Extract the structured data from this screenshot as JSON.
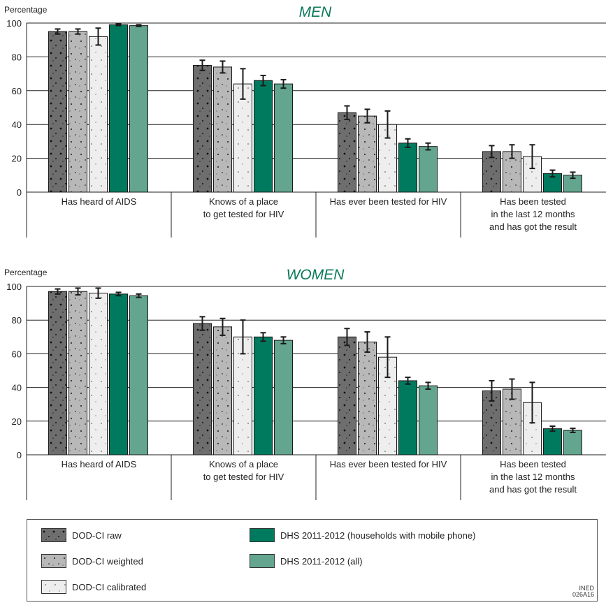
{
  "colors": {
    "raw": "#6e6e6e",
    "weighted": "#b8b8b8",
    "calibrated": "#eeeeee",
    "dhs_mobile": "#007a5e",
    "dhs_all": "#63a58f",
    "title": "#0b7a5a"
  },
  "chart_data": [
    {
      "type": "bar",
      "title": "MEN",
      "ylabel": "Percentage",
      "ylim": [
        0,
        100
      ],
      "yticks": [
        0,
        20,
        40,
        60,
        80,
        100
      ],
      "grid": true,
      "categories": [
        "Has heard of AIDS",
        "Knows of a place\nto get tested for HIV",
        "Has ever been tested for HIV",
        "Has been tested\nin the last 12 months\nand has got the result"
      ],
      "series": [
        {
          "name": "DOD-CI raw",
          "values": [
            95,
            75,
            47,
            24
          ],
          "err": [
            1.5,
            3,
            4,
            3.5
          ]
        },
        {
          "name": "DOD-CI weighted",
          "values": [
            95,
            74,
            45,
            24
          ],
          "err": [
            1.5,
            3.5,
            4,
            4
          ]
        },
        {
          "name": "DOD-CI calibrated",
          "values": [
            92,
            64,
            40,
            21
          ],
          "err": [
            5,
            9,
            8,
            7
          ]
        },
        {
          "name": "DHS 2011-2012 (households with mobile phone)",
          "values": [
            99,
            66,
            29,
            11
          ],
          "err": [
            0.5,
            3,
            2.5,
            2
          ]
        },
        {
          "name": "DHS 2011-2012 (all)",
          "values": [
            98.5,
            64,
            27,
            10
          ],
          "err": [
            0.5,
            2.5,
            2,
            1.8
          ]
        }
      ]
    },
    {
      "type": "bar",
      "title": "WOMEN",
      "ylabel": "Percentage",
      "ylim": [
        0,
        100
      ],
      "yticks": [
        0,
        20,
        40,
        60,
        80,
        100
      ],
      "grid": true,
      "categories": [
        "Has heard of AIDS",
        "Knows of a place\nto get tested for HIV",
        "Has ever been tested for HIV",
        "Has been tested\nin the last 12 months\nand has got the result"
      ],
      "series": [
        {
          "name": "DOD-CI raw",
          "values": [
            97,
            78,
            70,
            38
          ],
          "err": [
            1.5,
            4,
            5,
            6
          ]
        },
        {
          "name": "DOD-CI weighted",
          "values": [
            97,
            76,
            67,
            39
          ],
          "err": [
            2,
            5,
            6,
            6
          ]
        },
        {
          "name": "DOD-CI calibrated",
          "values": [
            96,
            70,
            58,
            31
          ],
          "err": [
            3,
            10,
            12,
            12
          ]
        },
        {
          "name": "DHS 2011-2012 (households with mobile phone)",
          "values": [
            95.5,
            70,
            44,
            15.5
          ],
          "err": [
            1,
            2.5,
            2,
            1.5
          ]
        },
        {
          "name": "DHS 2011-2012 (all)",
          "values": [
            94.5,
            68,
            41,
            14.5
          ],
          "err": [
            1,
            2,
            2,
            1.2
          ]
        }
      ]
    }
  ],
  "legend": [
    {
      "label": "DOD-CI raw"
    },
    {
      "label": "DOD-CI weighted"
    },
    {
      "label": "DOD-CI calibrated"
    },
    {
      "label": "DHS 2011-2012 (households with mobile phone)"
    },
    {
      "label": "DHS 2011-2012 (all)"
    }
  ],
  "credit": {
    "line1": "INED",
    "line2": "026A16"
  }
}
